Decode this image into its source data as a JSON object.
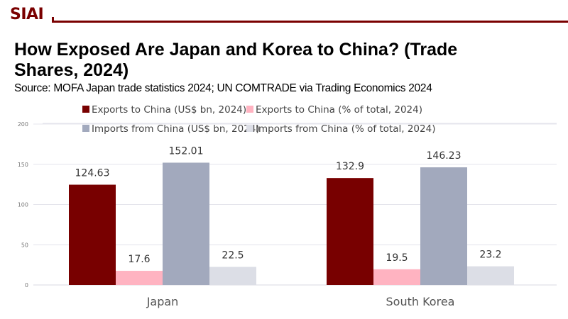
{
  "brand": {
    "logo_text": "SIAI",
    "color": "#7a0000"
  },
  "title": "How Exposed Are Japan and Korea to China? (Trade Shares, 2024)",
  "subtitle": "Source: MOFA Japan trade statistics 2024; UN COMTRADE via Trading Economics 2024",
  "chart_data": {
    "type": "bar",
    "title": "How Exposed Are Japan and Korea to China? (Trade Shares, 2024)",
    "xlabel": "",
    "ylabel": "",
    "ylim": [
      0,
      200
    ],
    "yticks": [
      0,
      50,
      100,
      150,
      200
    ],
    "grid": true,
    "legend_position": "top",
    "categories": [
      "Japan",
      "South Korea"
    ],
    "series": [
      {
        "name": "Exports to China (US$ bn, 2024)",
        "color": "#780000",
        "values": [
          124.63,
          132.9
        ]
      },
      {
        "name": "Exports to China (% of total, 2024)",
        "color": "#ffb3c1",
        "values": [
          17.6,
          19.5
        ]
      },
      {
        "name": "Imports from China (US$ bn, 2024)",
        "color": "#a2a9bd",
        "values": [
          152.01,
          146.23
        ]
      },
      {
        "name": "Imports from China (% of total, 2024)",
        "color": "#dcdee6",
        "values": [
          22.5,
          23.2
        ]
      }
    ],
    "data_labels": [
      [
        "124.63",
        "132.9"
      ],
      [
        "17.6",
        "19.5"
      ],
      [
        "152.01",
        "146.23"
      ],
      [
        "22.5",
        "23.2"
      ]
    ]
  }
}
